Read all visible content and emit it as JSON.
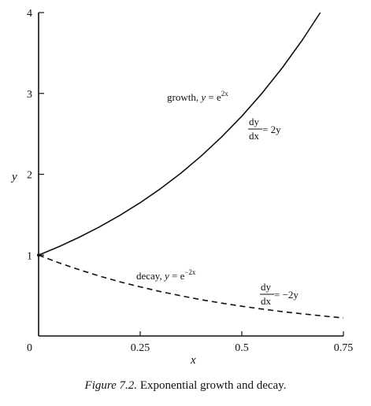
{
  "chart_data": {
    "type": "line",
    "title": "",
    "xlabel": "x",
    "ylabel": "y",
    "xlim": [
      0,
      0.75
    ],
    "ylim": [
      0,
      4
    ],
    "x_ticks": [
      "0.25",
      "0.5",
      "0.75"
    ],
    "y_ticks": [
      "1",
      "2",
      "3",
      "4"
    ],
    "origin_label": "0",
    "series": [
      {
        "name": "growth, y = e^2x",
        "style": "solid",
        "x": [
          0,
          0.05,
          0.1,
          0.15,
          0.2,
          0.25,
          0.3,
          0.35,
          0.4,
          0.45,
          0.5,
          0.55,
          0.6,
          0.65,
          0.693
        ],
        "y": [
          1,
          1.105,
          1.221,
          1.35,
          1.492,
          1.649,
          1.822,
          2.014,
          2.226,
          2.46,
          2.718,
          3.004,
          3.32,
          3.669,
          4.0
        ]
      },
      {
        "name": "decay, y = e^-2x",
        "style": "dashed",
        "x": [
          0,
          0.05,
          0.1,
          0.15,
          0.2,
          0.25,
          0.3,
          0.35,
          0.4,
          0.45,
          0.5,
          0.55,
          0.6,
          0.65,
          0.7,
          0.75
        ],
        "y": [
          1,
          0.905,
          0.819,
          0.741,
          0.67,
          0.607,
          0.549,
          0.497,
          0.449,
          0.407,
          0.368,
          0.333,
          0.301,
          0.273,
          0.247,
          0.223
        ]
      }
    ],
    "annotations": {
      "growth_prefix": "growth, ",
      "growth_var": "y",
      "growth_eq": " = e",
      "growth_exp": "2x",
      "decay_prefix": "decay, ",
      "decay_var": "y",
      "decay_eq": " = e",
      "decay_exp": "−2x",
      "growth_de_num": "dy",
      "growth_de_den": "dx",
      "growth_de_rhs": " = 2y",
      "decay_de_num": "dy",
      "decay_de_den": "dx",
      "decay_de_rhs": " = −2y"
    }
  },
  "caption": {
    "figure_label": "Figure 7.2.",
    "text": " Exponential growth and decay."
  }
}
